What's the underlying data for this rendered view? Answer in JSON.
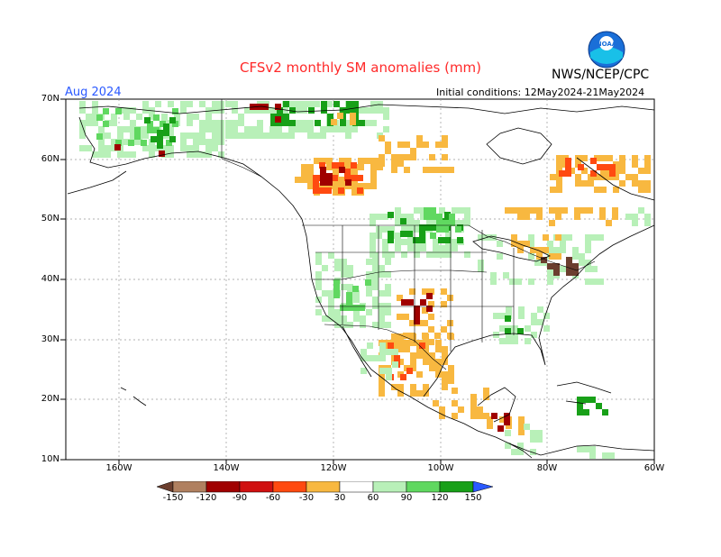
{
  "header": {
    "title": "CFSv2 monthly SM anomalies (mm)",
    "agency": "NWS/NCEP/CPC",
    "valid_month": "Aug 2024",
    "initial_conditions": "Initial conditions: 12May2024-21May2024",
    "logo_text": "NOAA"
  },
  "axes": {
    "lat_labels": [
      "70N",
      "60N",
      "50N",
      "40N",
      "30N",
      "20N",
      "10N"
    ],
    "lon_labels": [
      "160W",
      "140W",
      "120W",
      "100W",
      "80W",
      "60W"
    ]
  },
  "colorbar": {
    "labels": [
      "-150",
      "-120",
      "-90",
      "-60",
      "-30",
      "30",
      "60",
      "90",
      "120",
      "150"
    ],
    "colors": [
      "#6b3e2e",
      "#b08060",
      "#a00000",
      "#d01010",
      "#ff4a10",
      "#f8b840",
      "#ffffff",
      "#b8f0b8",
      "#60d860",
      "#18a018",
      "#3a8ae8"
    ]
  },
  "colors": {
    "title": "#ff2a2a",
    "valid": "#2a59ff",
    "wet_light": "#b8f0b8",
    "wet_medium": "#60d860",
    "wet_dark": "#18a018",
    "wet_blue": "#3a8ae8",
    "dry_light": "#f8b840",
    "dry_medium": "#ff4a10",
    "dry_dark": "#a00000",
    "dry_brown": "#6b3e2e"
  }
}
